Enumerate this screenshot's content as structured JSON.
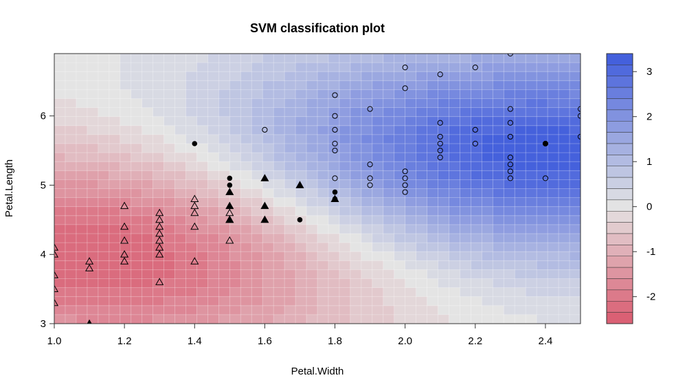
{
  "chart_data": {
    "type": "heatmap",
    "title": "SVM classification plot",
    "xlabel": "Petal.Width",
    "ylabel": "Petal.Length",
    "xlim": [
      1.0,
      2.5
    ],
    "ylim": [
      3.0,
      6.9
    ],
    "x_ticks": [
      "1.0",
      "1.2",
      "1.4",
      "1.6",
      "1.8",
      "2.0",
      "2.2",
      "2.4"
    ],
    "y_ticks": [
      "3",
      "4",
      "5",
      "6"
    ],
    "colorbar": {
      "ticks": [
        "3",
        "2",
        "1",
        "0",
        "-1",
        "-2"
      ],
      "range": [
        -2.6,
        3.4
      ],
      "low_color": "#d9596e",
      "mid_color": "#e4e4e4",
      "high_color": "#3e5bdc"
    },
    "grid": true,
    "decision_centers": {
      "low": {
        "x": 1.2,
        "y": 4.1,
        "value": -2.6
      },
      "high": {
        "x": 2.35,
        "y": 5.45,
        "value": 3.4
      }
    },
    "points": [
      {
        "x": 1.0,
        "y": 4.1,
        "marker": "triangle-open"
      },
      {
        "x": 1.0,
        "y": 4.0,
        "marker": "triangle-open"
      },
      {
        "x": 1.0,
        "y": 3.7,
        "marker": "triangle-open"
      },
      {
        "x": 1.0,
        "y": 3.5,
        "marker": "triangle-open"
      },
      {
        "x": 1.0,
        "y": 3.3,
        "marker": "triangle-open"
      },
      {
        "x": 1.1,
        "y": 3.9,
        "marker": "triangle-open"
      },
      {
        "x": 1.1,
        "y": 3.8,
        "marker": "triangle-open"
      },
      {
        "x": 1.1,
        "y": 3.0,
        "marker": "triangle-filled"
      },
      {
        "x": 1.2,
        "y": 4.7,
        "marker": "triangle-open"
      },
      {
        "x": 1.2,
        "y": 4.4,
        "marker": "triangle-open"
      },
      {
        "x": 1.2,
        "y": 4.2,
        "marker": "triangle-open"
      },
      {
        "x": 1.2,
        "y": 4.0,
        "marker": "triangle-open"
      },
      {
        "x": 1.2,
        "y": 3.9,
        "marker": "triangle-open"
      },
      {
        "x": 1.3,
        "y": 4.6,
        "marker": "triangle-open"
      },
      {
        "x": 1.3,
        "y": 4.5,
        "marker": "triangle-open"
      },
      {
        "x": 1.3,
        "y": 4.4,
        "marker": "triangle-open"
      },
      {
        "x": 1.3,
        "y": 4.3,
        "marker": "triangle-open"
      },
      {
        "x": 1.3,
        "y": 4.2,
        "marker": "triangle-open"
      },
      {
        "x": 1.3,
        "y": 4.1,
        "marker": "triangle-open"
      },
      {
        "x": 1.3,
        "y": 4.0,
        "marker": "triangle-open"
      },
      {
        "x": 1.3,
        "y": 3.6,
        "marker": "triangle-open"
      },
      {
        "x": 1.4,
        "y": 4.8,
        "marker": "triangle-open"
      },
      {
        "x": 1.4,
        "y": 4.7,
        "marker": "triangle-open"
      },
      {
        "x": 1.4,
        "y": 4.6,
        "marker": "triangle-open"
      },
      {
        "x": 1.4,
        "y": 4.4,
        "marker": "triangle-open"
      },
      {
        "x": 1.4,
        "y": 3.9,
        "marker": "triangle-open"
      },
      {
        "x": 1.4,
        "y": 5.6,
        "marker": "circle-filled"
      },
      {
        "x": 1.5,
        "y": 5.1,
        "marker": "circle-filled"
      },
      {
        "x": 1.5,
        "y": 5.0,
        "marker": "circle-filled"
      },
      {
        "x": 1.5,
        "y": 4.9,
        "marker": "triangle-filled"
      },
      {
        "x": 1.5,
        "y": 4.7,
        "marker": "triangle-filled"
      },
      {
        "x": 1.5,
        "y": 4.6,
        "marker": "triangle-open"
      },
      {
        "x": 1.5,
        "y": 4.5,
        "marker": "triangle-filled"
      },
      {
        "x": 1.5,
        "y": 4.5,
        "marker": "triangle-open"
      },
      {
        "x": 1.5,
        "y": 4.2,
        "marker": "triangle-open"
      },
      {
        "x": 1.6,
        "y": 5.8,
        "marker": "circle-open"
      },
      {
        "x": 1.6,
        "y": 5.1,
        "marker": "triangle-filled"
      },
      {
        "x": 1.6,
        "y": 4.7,
        "marker": "triangle-filled"
      },
      {
        "x": 1.6,
        "y": 4.5,
        "marker": "triangle-filled"
      },
      {
        "x": 1.7,
        "y": 5.0,
        "marker": "triangle-filled"
      },
      {
        "x": 1.7,
        "y": 4.5,
        "marker": "circle-filled"
      },
      {
        "x": 1.8,
        "y": 6.3,
        "marker": "circle-open"
      },
      {
        "x": 1.8,
        "y": 6.0,
        "marker": "circle-open"
      },
      {
        "x": 1.8,
        "y": 5.8,
        "marker": "circle-open"
      },
      {
        "x": 1.8,
        "y": 5.6,
        "marker": "circle-open"
      },
      {
        "x": 1.8,
        "y": 5.5,
        "marker": "circle-open"
      },
      {
        "x": 1.8,
        "y": 5.1,
        "marker": "circle-open"
      },
      {
        "x": 1.8,
        "y": 4.9,
        "marker": "circle-filled"
      },
      {
        "x": 1.8,
        "y": 4.8,
        "marker": "circle-filled"
      },
      {
        "x": 1.8,
        "y": 4.8,
        "marker": "triangle-filled"
      },
      {
        "x": 1.9,
        "y": 6.1,
        "marker": "circle-open"
      },
      {
        "x": 1.9,
        "y": 5.3,
        "marker": "circle-open"
      },
      {
        "x": 1.9,
        "y": 5.1,
        "marker": "circle-open"
      },
      {
        "x": 1.9,
        "y": 5.0,
        "marker": "circle-open"
      },
      {
        "x": 2.0,
        "y": 6.7,
        "marker": "circle-open"
      },
      {
        "x": 2.0,
        "y": 6.4,
        "marker": "circle-open"
      },
      {
        "x": 2.0,
        "y": 5.2,
        "marker": "circle-open"
      },
      {
        "x": 2.0,
        "y": 5.1,
        "marker": "circle-open"
      },
      {
        "x": 2.0,
        "y": 5.0,
        "marker": "circle-open"
      },
      {
        "x": 2.0,
        "y": 4.9,
        "marker": "circle-open"
      },
      {
        "x": 2.1,
        "y": 6.6,
        "marker": "circle-open"
      },
      {
        "x": 2.1,
        "y": 5.9,
        "marker": "circle-open"
      },
      {
        "x": 2.1,
        "y": 5.7,
        "marker": "circle-open"
      },
      {
        "x": 2.1,
        "y": 5.6,
        "marker": "circle-open"
      },
      {
        "x": 2.1,
        "y": 5.5,
        "marker": "circle-open"
      },
      {
        "x": 2.1,
        "y": 5.4,
        "marker": "circle-open"
      },
      {
        "x": 2.2,
        "y": 6.7,
        "marker": "circle-open"
      },
      {
        "x": 2.2,
        "y": 5.8,
        "marker": "circle-open"
      },
      {
        "x": 2.2,
        "y": 5.6,
        "marker": "circle-open"
      },
      {
        "x": 2.3,
        "y": 6.9,
        "marker": "circle-open"
      },
      {
        "x": 2.3,
        "y": 6.1,
        "marker": "circle-open"
      },
      {
        "x": 2.3,
        "y": 5.9,
        "marker": "circle-open"
      },
      {
        "x": 2.3,
        "y": 5.7,
        "marker": "circle-open"
      },
      {
        "x": 2.3,
        "y": 5.4,
        "marker": "circle-open"
      },
      {
        "x": 2.3,
        "y": 5.3,
        "marker": "circle-open"
      },
      {
        "x": 2.3,
        "y": 5.2,
        "marker": "circle-open"
      },
      {
        "x": 2.3,
        "y": 5.1,
        "marker": "circle-open"
      },
      {
        "x": 2.4,
        "y": 5.6,
        "marker": "circle-open"
      },
      {
        "x": 2.4,
        "y": 5.6,
        "marker": "circle-filled"
      },
      {
        "x": 2.4,
        "y": 5.1,
        "marker": "circle-open"
      },
      {
        "x": 2.5,
        "y": 6.1,
        "marker": "circle-open"
      },
      {
        "x": 2.5,
        "y": 6.0,
        "marker": "circle-open"
      },
      {
        "x": 2.5,
        "y": 5.7,
        "marker": "circle-open"
      }
    ]
  }
}
